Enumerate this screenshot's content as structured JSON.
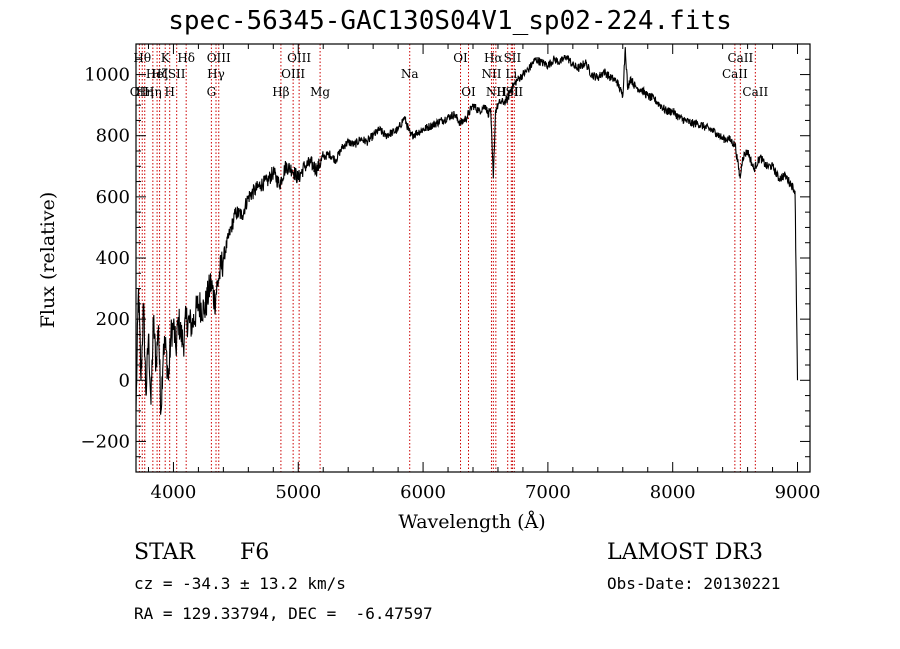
{
  "chart_data": {
    "type": "line",
    "title": "spec-56345-GAC130S04V1_sp02-224.fits",
    "xlabel": "Wavelength (Å)",
    "ylabel": "Flux (relative)",
    "xlim": [
      3700,
      9100
    ],
    "ylim": [
      -300,
      1100
    ],
    "x_ticks": [
      4000,
      5000,
      6000,
      7000,
      8000,
      9000
    ],
    "y_ticks": [
      -200,
      0,
      200,
      400,
      600,
      800,
      1000
    ],
    "series": [
      {
        "name": "flux",
        "x": [
          3700,
          3720,
          3740,
          3760,
          3780,
          3800,
          3820,
          3840,
          3860,
          3880,
          3900,
          3920,
          3940,
          3960,
          3980,
          4000,
          4020,
          4040,
          4060,
          4080,
          4100,
          4150,
          4200,
          4250,
          4300,
          4330,
          4360,
          4400,
          4450,
          4500,
          4550,
          4600,
          4650,
          4700,
          4750,
          4800,
          4850,
          4900,
          4950,
          5000,
          5050,
          5100,
          5150,
          5200,
          5250,
          5300,
          5350,
          5400,
          5450,
          5500,
          5550,
          5600,
          5650,
          5700,
          5750,
          5800,
          5850,
          5900,
          5950,
          6000,
          6050,
          6100,
          6150,
          6200,
          6250,
          6300,
          6350,
          6400,
          6450,
          6500,
          6520,
          6540,
          6563,
          6580,
          6600,
          6620,
          6650,
          6680,
          6700,
          6750,
          6800,
          6850,
          6900,
          6950,
          7000,
          7050,
          7100,
          7150,
          7200,
          7250,
          7300,
          7350,
          7400,
          7450,
          7500,
          7550,
          7600,
          7620,
          7640,
          7660,
          7700,
          7750,
          7800,
          7850,
          7900,
          7950,
          8000,
          8050,
          8100,
          8150,
          8200,
          8250,
          8300,
          8350,
          8400,
          8450,
          8500,
          8540,
          8560,
          8600,
          8650,
          8700,
          8750,
          8800,
          8850,
          8900,
          8950,
          8980,
          9000
        ],
        "y": [
          -100,
          300,
          0,
          250,
          -50,
          150,
          -80,
          200,
          50,
          180,
          -100,
          120,
          100,
          0,
          150,
          180,
          100,
          200,
          150,
          120,
          200,
          180,
          250,
          230,
          320,
          260,
          330,
          400,
          480,
          550,
          540,
          600,
          620,
          640,
          650,
          680,
          640,
          700,
          690,
          660,
          700,
          710,
          690,
          730,
          740,
          720,
          760,
          780,
          770,
          790,
          780,
          800,
          820,
          800,
          810,
          820,
          860,
          800,
          810,
          820,
          830,
          840,
          850,
          860,
          870,
          840,
          860,
          900,
          880,
          900,
          870,
          890,
          660,
          880,
          900,
          910,
          910,
          920,
          950,
          980,
          1000,
          1020,
          1050,
          1040,
          1030,
          1050,
          1040,
          1060,
          1030,
          1020,
          1040,
          1000,
          990,
          1010,
          990,
          980,
          930,
          1090,
          950,
          990,
          960,
          950,
          930,
          920,
          900,
          880,
          880,
          860,
          850,
          840,
          840,
          830,
          820,
          810,
          790,
          790,
          770,
          660,
          730,
          750,
          690,
          730,
          700,
          700,
          660,
          670,
          640,
          620,
          0
        ]
      }
    ],
    "line_labels": [
      {
        "wl": 3727,
        "label": "OII",
        "row": 3
      },
      {
        "wl": 3750,
        "label": "Hθ",
        "row": 1
      },
      {
        "wl": 3770,
        "label": "Hη",
        "row": 3
      },
      {
        "wl": 3835,
        "label": "Hη",
        "row": 3
      },
      {
        "wl": 3869,
        "label": "HeI",
        "row": 2
      },
      {
        "wl": 3889,
        "label": "Hζ",
        "row": 2
      },
      {
        "wl": 3934,
        "label": "K",
        "row": 1
      },
      {
        "wl": 3970,
        "label": "H",
        "row": 3
      },
      {
        "wl": 4026,
        "label": "SII",
        "row": 2
      },
      {
        "wl": 4102,
        "label": "Hδ",
        "row": 1
      },
      {
        "wl": 4304,
        "label": "G",
        "row": 3
      },
      {
        "wl": 4341,
        "label": "Hγ",
        "row": 2
      },
      {
        "wl": 4363,
        "label": "OIII",
        "row": 1
      },
      {
        "wl": 4861,
        "label": "Hβ",
        "row": 3
      },
      {
        "wl": 4959,
        "label": "OIII",
        "row": 2
      },
      {
        "wl": 5007,
        "label": "OIII",
        "row": 1
      },
      {
        "wl": 5175,
        "label": "Mg",
        "row": 3
      },
      {
        "wl": 5893,
        "label": "Na",
        "row": 2
      },
      {
        "wl": 6300,
        "label": "OI",
        "row": 1
      },
      {
        "wl": 6364,
        "label": "OI",
        "row": 3
      },
      {
        "wl": 6548,
        "label": "NII",
        "row": 2
      },
      {
        "wl": 6563,
        "label": "Hα",
        "row": 1
      },
      {
        "wl": 6583,
        "label": "NII",
        "row": 3
      },
      {
        "wl": 6678,
        "label": "HeI",
        "row": 3
      },
      {
        "wl": 6716,
        "label": "SII",
        "row": 1
      },
      {
        "wl": 6707,
        "label": "Li",
        "row": 2
      },
      {
        "wl": 6731,
        "label": "SII",
        "row": 3
      },
      {
        "wl": 8498,
        "label": "CaII",
        "row": 2
      },
      {
        "wl": 8542,
        "label": "CaII",
        "row": 1
      },
      {
        "wl": 8662,
        "label": "CaII",
        "row": 3
      }
    ]
  },
  "object_class": "STAR",
  "subclass": "F6",
  "survey": "LAMOST DR3",
  "cz_text": "cz = -34.3 ± 13.2 km/s",
  "obs_date_text": "Obs-Date: 20130221",
  "coords_text": "RA = 129.33794, DEC =  -6.47597",
  "colors": {
    "spectrum": "#000000",
    "line_markers": "#cc0000"
  }
}
